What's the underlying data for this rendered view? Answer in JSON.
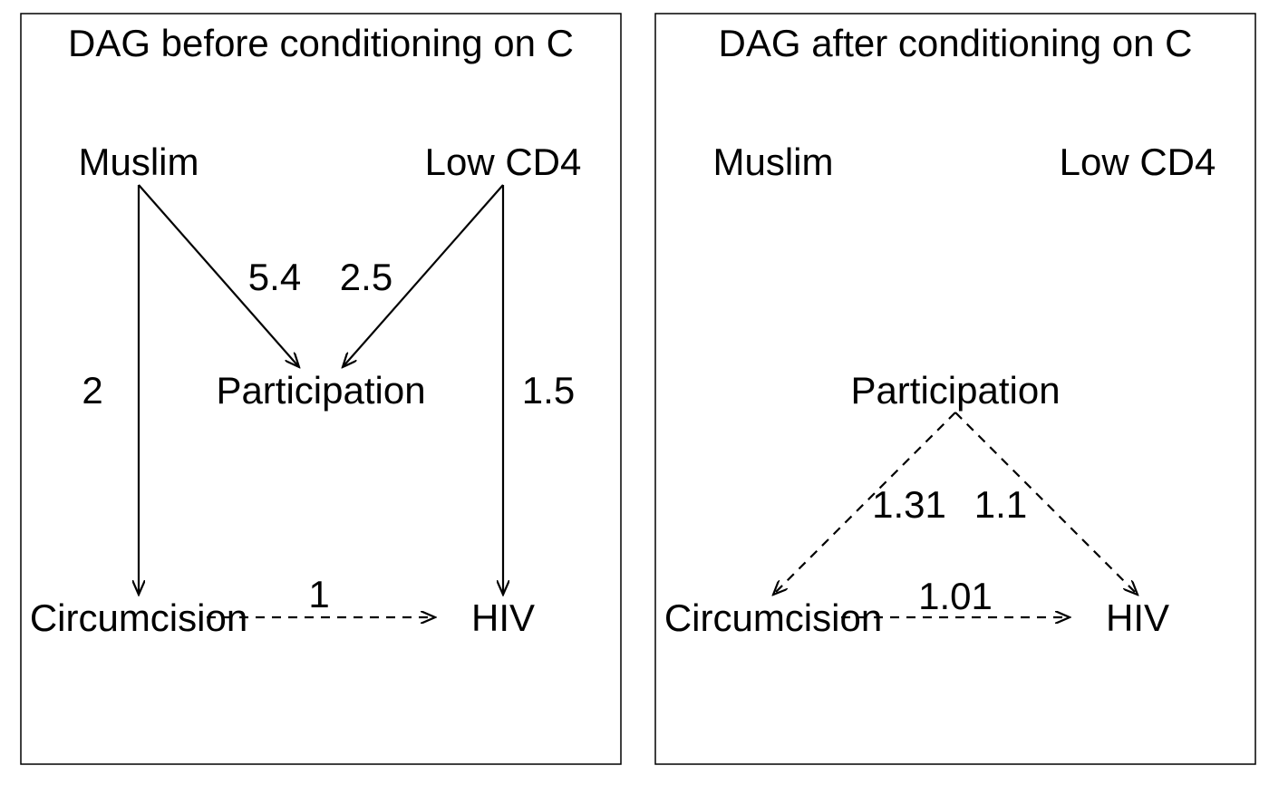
{
  "panels": {
    "left": {
      "title": "DAG before conditioning on C",
      "nodes": {
        "muslim": "Muslim",
        "lowcd4": "Low CD4",
        "participation": "Participation",
        "circumcision": "Circumcision",
        "hiv": "HIV"
      },
      "edge_labels": {
        "muslim_participation": "5.4",
        "lowcd4_participation": "2.5",
        "muslim_circumcision": "2",
        "lowcd4_hiv": "1.5",
        "circumcision_hiv": "1"
      }
    },
    "right": {
      "title": "DAG after conditioning on C",
      "nodes": {
        "muslim": "Muslim",
        "lowcd4": "Low CD4",
        "participation": "Participation",
        "circumcision": "Circumcision",
        "hiv": "HIV"
      },
      "edge_labels": {
        "participation_circumcision": "1.31",
        "participation_hiv": "1.1",
        "circumcision_hiv": "1.01"
      }
    }
  },
  "colors": {
    "stroke": "#000000",
    "background": "#ffffff"
  }
}
